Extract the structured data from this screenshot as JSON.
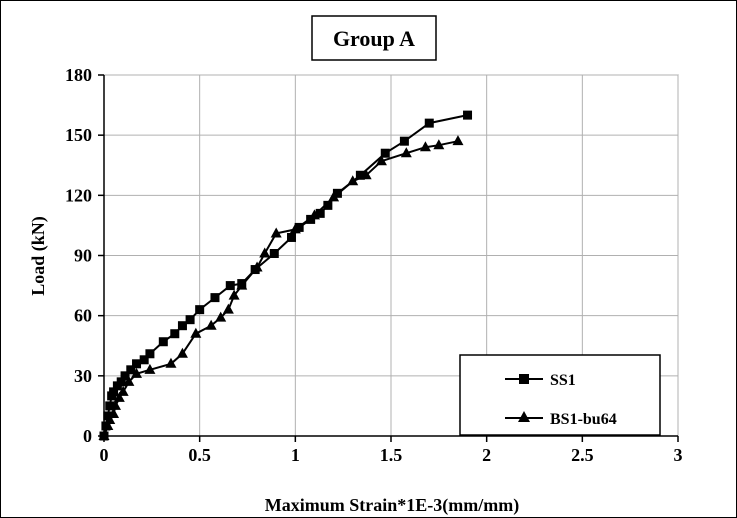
{
  "chart_data": {
    "type": "line",
    "title": "Group A",
    "xlabel": "Maximum Strain*1E-3(mm/mm)",
    "ylabel": "Load (kN)",
    "xlim": [
      0,
      3
    ],
    "ylim": [
      0,
      180
    ],
    "xticks": [
      "0",
      "0.5",
      "1",
      "1.5",
      "2",
      "2.5",
      "3"
    ],
    "yticks": [
      "0",
      "30",
      "60",
      "90",
      "120",
      "150",
      "180"
    ],
    "grid": true,
    "legend_position": "bottom-right",
    "series": [
      {
        "name": "SS1",
        "marker": "square",
        "color": "#000000",
        "points": [
          [
            0,
            0
          ],
          [
            0.01,
            5
          ],
          [
            0.02,
            10
          ],
          [
            0.03,
            15
          ],
          [
            0.04,
            20
          ],
          [
            0.05,
            22
          ],
          [
            0.07,
            25
          ],
          [
            0.09,
            27
          ],
          [
            0.11,
            30
          ],
          [
            0.14,
            33
          ],
          [
            0.17,
            36
          ],
          [
            0.21,
            38
          ],
          [
            0.24,
            41
          ],
          [
            0.31,
            47
          ],
          [
            0.37,
            51
          ],
          [
            0.41,
            55
          ],
          [
            0.45,
            58
          ],
          [
            0.5,
            63
          ],
          [
            0.58,
            69
          ],
          [
            0.66,
            75
          ],
          [
            0.72,
            76
          ],
          [
            0.79,
            83
          ],
          [
            0.89,
            91
          ],
          [
            0.98,
            99
          ],
          [
            1.02,
            104
          ],
          [
            1.08,
            108
          ],
          [
            1.13,
            111
          ],
          [
            1.17,
            115
          ],
          [
            1.22,
            121
          ],
          [
            1.34,
            130
          ],
          [
            1.47,
            141
          ],
          [
            1.57,
            147
          ],
          [
            1.7,
            156
          ],
          [
            1.9,
            160
          ]
        ]
      },
      {
        "name": "BS1-bu64",
        "marker": "triangle",
        "color": "#000000",
        "points": [
          [
            0,
            0
          ],
          [
            0.02,
            5
          ],
          [
            0.03,
            8
          ],
          [
            0.05,
            11
          ],
          [
            0.06,
            15
          ],
          [
            0.08,
            19
          ],
          [
            0.1,
            22
          ],
          [
            0.13,
            27
          ],
          [
            0.17,
            31
          ],
          [
            0.24,
            33
          ],
          [
            0.35,
            36
          ],
          [
            0.41,
            41
          ],
          [
            0.48,
            51
          ],
          [
            0.56,
            55
          ],
          [
            0.61,
            59
          ],
          [
            0.65,
            63
          ],
          [
            0.68,
            70
          ],
          [
            0.72,
            75
          ],
          [
            0.8,
            84
          ],
          [
            0.84,
            91
          ],
          [
            0.9,
            101
          ],
          [
            1.0,
            103
          ],
          [
            1.1,
            110
          ],
          [
            1.2,
            119
          ],
          [
            1.3,
            127
          ],
          [
            1.37,
            130
          ],
          [
            1.45,
            137
          ],
          [
            1.58,
            141
          ],
          [
            1.68,
            144
          ],
          [
            1.75,
            145
          ],
          [
            1.85,
            147
          ]
        ]
      }
    ]
  }
}
